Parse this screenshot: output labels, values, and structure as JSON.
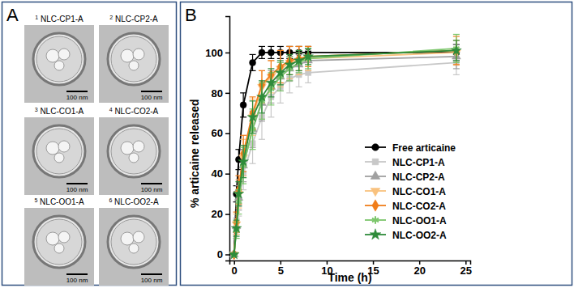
{
  "panel_a": {
    "label": "A",
    "images": [
      {
        "number": 1,
        "name": "NLC-CP1-A",
        "scale_bar": "100 nm"
      },
      {
        "number": 2,
        "name": "NLC-CP2-A",
        "scale_bar": "100 nm"
      },
      {
        "number": 3,
        "name": "NLC-CO1-A",
        "scale_bar": "100 nm"
      },
      {
        "number": 4,
        "name": "NLC-CO2-A",
        "scale_bar": "100 nm"
      },
      {
        "number": 5,
        "name": "NLC-OO1-A",
        "scale_bar": "100 nm"
      },
      {
        "number": 6,
        "name": "NLC-OO2-A",
        "scale_bar": "100 nm"
      }
    ]
  },
  "panel_b": {
    "label": "B"
  },
  "chart_data": {
    "type": "line",
    "x_label": "Time (h)",
    "y_label": "% articaine released",
    "x": [
      0,
      0.25,
      0.5,
      1,
      2,
      3,
      4,
      5,
      6,
      7,
      8,
      24
    ],
    "xlim": [
      -0.5,
      25.5
    ],
    "xticks": [
      0,
      5,
      10,
      15,
      20,
      25
    ],
    "ylim": [
      -3,
      118
    ],
    "yticks": [
      0,
      20,
      40,
      60,
      80,
      100
    ],
    "legend": "lower right",
    "series": [
      {
        "name": "Free articaine",
        "color": "#000000",
        "marker": "circle",
        "values": [
          0,
          30,
          47,
          74,
          95,
          100,
          100,
          100,
          100,
          100,
          100,
          100
        ],
        "errors": [
          0,
          4,
          5,
          6,
          4,
          3,
          3,
          3,
          3,
          3,
          3,
          4
        ]
      },
      {
        "name": "NLC-CP1-A",
        "color": "#c8c8c8",
        "marker": "square",
        "values": [
          0,
          12,
          25,
          40,
          55,
          68,
          78,
          83,
          87,
          89,
          90,
          95
        ],
        "errors": [
          0,
          4,
          6,
          8,
          10,
          11,
          10,
          8,
          7,
          6,
          5,
          6
        ]
      },
      {
        "name": "NLC-CP2-A",
        "color": "#a0a0a0",
        "marker": "triangle",
        "values": [
          0,
          14,
          28,
          44,
          62,
          75,
          83,
          88,
          92,
          94,
          96,
          98
        ],
        "errors": [
          0,
          4,
          6,
          8,
          9,
          9,
          8,
          7,
          6,
          5,
          5,
          6
        ]
      },
      {
        "name": "NLC-CO1-A",
        "color": "#f9c27e",
        "marker": "triangle-down",
        "values": [
          0,
          15,
          30,
          48,
          68,
          83,
          88,
          92,
          95,
          96,
          97,
          100
        ],
        "errors": [
          0,
          5,
          7,
          9,
          9,
          8,
          8,
          9,
          8,
          7,
          6,
          6
        ]
      },
      {
        "name": "NLC-CO2-A",
        "color": "#f07d1a",
        "marker": "diamond",
        "values": [
          0,
          16,
          32,
          50,
          70,
          84,
          89,
          93,
          96,
          97,
          98,
          101
        ],
        "errors": [
          0,
          5,
          7,
          9,
          8,
          7,
          7,
          8,
          7,
          6,
          5,
          7
        ]
      },
      {
        "name": "NLC-OO1-A",
        "color": "#7cc66b",
        "marker": "asterisk",
        "values": [
          0,
          12,
          26,
          44,
          62,
          76,
          82,
          88,
          92,
          95,
          97,
          102
        ],
        "errors": [
          0,
          4,
          6,
          9,
          10,
          9,
          8,
          7,
          6,
          5,
          5,
          7
        ]
      },
      {
        "name": "NLC-OO2-A",
        "color": "#2e8b3a",
        "marker": "star",
        "values": [
          0,
          13,
          30,
          46,
          68,
          78,
          85,
          90,
          94,
          96,
          98,
          101
        ],
        "errors": [
          0,
          4,
          6,
          8,
          8,
          8,
          7,
          6,
          5,
          5,
          4,
          5
        ]
      }
    ]
  }
}
